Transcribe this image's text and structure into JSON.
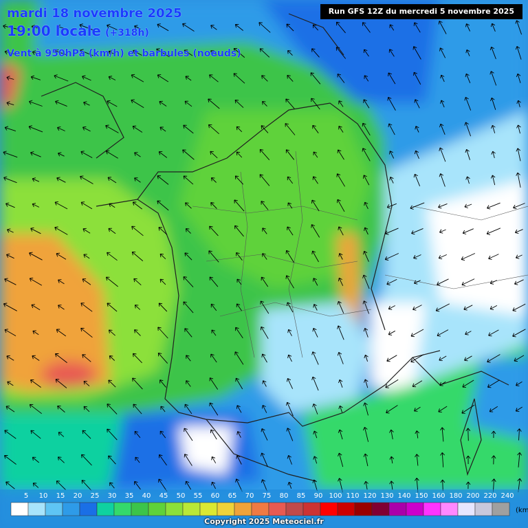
{
  "header": {
    "date": "mardi 18 novembre 2025",
    "time": "19:00 locale",
    "lead": "(+318h)",
    "subtitle": "Vent à 950hPa (km/h) et barbules (noeuds)",
    "run": "Run GFS 12Z du mercredi 5 novembre 2025"
  },
  "legend": {
    "unit": "(km",
    "labels": [
      "5",
      "10",
      "15",
      "20",
      "25",
      "30",
      "35",
      "40",
      "45",
      "50",
      "55",
      "60",
      "65",
      "70",
      "75",
      "80",
      "85",
      "90",
      "100",
      "110",
      "120",
      "130",
      "140",
      "150",
      "160",
      "180",
      "200",
      "220",
      "240"
    ],
    "colors": [
      "#ffffff",
      "#a8e4fb",
      "#5fc5f4",
      "#2e9be8",
      "#1a6fe6",
      "#0fd1a0",
      "#34d96b",
      "#3cc44a",
      "#5fd23a",
      "#8ce03a",
      "#b9e838",
      "#dbe832",
      "#f0d23a",
      "#f0a33a",
      "#ef7a43",
      "#e85a52",
      "#c04a4a",
      "#cc3333",
      "#ff0000",
      "#cc0000",
      "#990000",
      "#800033",
      "#aa00aa",
      "#cc00cc",
      "#ff33ff",
      "#ff88ff",
      "#e6e6ff",
      "#c8c8dc",
      "#a0a0a0"
    ]
  },
  "copyright": "Copyright 2025 Meteociel.fr"
}
